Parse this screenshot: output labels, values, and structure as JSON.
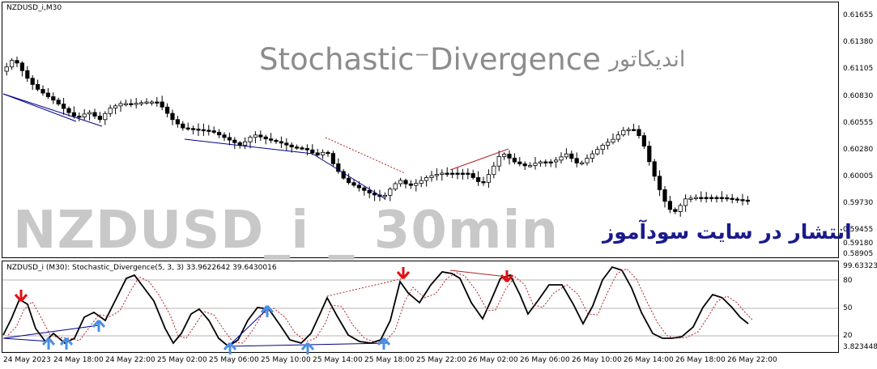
{
  "price_pane": {
    "title": "NZDUSD_i,M30",
    "price_labels": [
      "0.61655",
      "0.61380",
      "0.61105",
      "0.60830",
      "0.60555",
      "0.60280",
      "0.60005",
      "0.59730",
      "0.59455",
      "0.59180",
      "0.58905"
    ],
    "watermark_title": "Stochastic⁻Divergence",
    "watermark_persian": "اندیکاتور",
    "watermark_symbol": "NZDUSD_i _ 30min",
    "watermark_site": "انتشار در سایت سودآموز"
  },
  "indicator_pane": {
    "title": "NZDUSD_i (M30): Stochastic_Divergence(5, 3, 3) 33.9622642 39.6430016",
    "axis_max": "99.633236",
    "level_80": "80",
    "level_50": "50",
    "level_20": "20",
    "axis_min": "3.823448"
  },
  "time_axis": {
    "labels": [
      "24 May 2023",
      "24 May 18:00",
      "24 May 22:00",
      "25 May 02:00",
      "25 May 06:00",
      "25 May 10:00",
      "25 May 14:00",
      "25 May 18:00",
      "25 May 22:00",
      "26 May 02:00",
      "26 May 06:00",
      "26 May 10:00",
      "26 May 14:00",
      "26 May 18:00",
      "26 May 22:00"
    ]
  },
  "colors": {
    "candle": "#000000",
    "bull_div": "#00008b",
    "bear_div": "#b22222",
    "main_line": "#000000",
    "signal_line": "#b22222",
    "arrow_up": "#4a8fe7",
    "arrow_down": "#e01010"
  }
}
